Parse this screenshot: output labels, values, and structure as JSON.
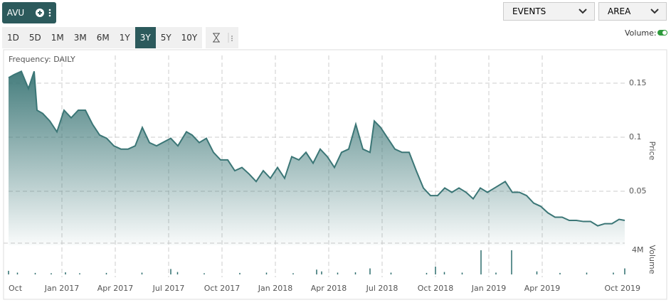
{
  "toolbar": {
    "symbol": "AVU",
    "ranges": [
      "1D",
      "5D",
      "1M",
      "3M",
      "6M",
      "1Y",
      "3Y",
      "5Y",
      "10Y"
    ],
    "selected_range_index": 6,
    "events": "EVENTS",
    "chart_style": "AREA",
    "volume_toggle": "Volume:"
  },
  "chart_data": {
    "type": "area",
    "frequency_label": "Frequency: DAILY",
    "y_label": "Price",
    "y2_label": "Volume",
    "xlim": [
      0,
      34.64
    ],
    "xticks": [
      {
        "value": 0,
        "label": "Oct"
      },
      {
        "value": 3,
        "label": "Jan 2017"
      },
      {
        "value": 6,
        "label": "Apr 2017"
      },
      {
        "value": 9,
        "label": "Jul 2017"
      },
      {
        "value": 12,
        "label": "Oct 2017"
      },
      {
        "value": 15,
        "label": "Jan 2018"
      },
      {
        "value": 18,
        "label": "Apr 2018"
      },
      {
        "value": 21,
        "label": "Jul 2018"
      },
      {
        "value": 24,
        "label": "Oct 2018"
      },
      {
        "value": 27,
        "label": "Jan 2019"
      },
      {
        "value": 30,
        "label": "Apr 2019"
      },
      {
        "value": 34.64,
        "label": "Oct 2019"
      }
    ],
    "ylim": [
      0,
      0.175
    ],
    "yticks": [
      0.05,
      0.1,
      0.15
    ],
    "y2lim": [
      0,
      5000000
    ],
    "y2ticks": [
      {
        "value": 4000000,
        "label": "4M"
      }
    ],
    "grid": true,
    "series": [
      {
        "color": "#3b7676",
        "x": [
          0,
          0.32,
          0.72,
          1.12,
          1.44,
          1.6,
          1.92,
          2.32,
          2.72,
          3.12,
          3.52,
          3.92,
          4.32,
          4.72,
          5.12,
          5.52,
          5.92,
          6.32,
          6.72,
          7.12,
          7.52,
          7.92,
          8.32,
          9.12,
          9.52,
          10,
          10.32,
          10.72,
          11.12,
          11.52,
          11.92,
          12.32,
          12.72,
          13.12,
          13.52,
          13.92,
          14.32,
          14.72,
          15.12,
          15.52,
          15.92,
          16.32,
          16.72,
          17.12,
          17.52,
          17.92,
          18.32,
          18.72,
          19.12,
          19.52,
          19.92,
          20.32,
          20.56,
          20.92,
          21.32,
          21.72,
          22.12,
          22.52,
          22.92,
          23.32,
          23.72,
          24.12,
          24.52,
          24.92,
          25.32,
          25.72,
          26.12,
          26.52,
          26.92,
          27.32,
          27.92,
          28.32,
          28.72,
          29.12,
          29.52,
          29.92,
          30.32,
          30.72,
          31.12,
          31.52,
          31.92,
          32.32,
          32.72,
          33.12,
          33.52,
          33.92,
          34.32,
          34.64
        ],
        "values": [
          0.155,
          0.158,
          0.161,
          0.145,
          0.161,
          0.125,
          0.122,
          0.115,
          0.105,
          0.125,
          0.118,
          0.125,
          0.125,
          0.112,
          0.102,
          0.099,
          0.092,
          0.089,
          0.089,
          0.092,
          0.109,
          0.095,
          0.092,
          0.099,
          0.092,
          0.105,
          0.102,
          0.095,
          0.099,
          0.086,
          0.079,
          0.079,
          0.069,
          0.072,
          0.066,
          0.059,
          0.069,
          0.062,
          0.072,
          0.062,
          0.082,
          0.079,
          0.086,
          0.076,
          0.089,
          0.082,
          0.072,
          0.086,
          0.089,
          0.112,
          0.089,
          0.086,
          0.115,
          0.109,
          0.099,
          0.089,
          0.086,
          0.086,
          0.069,
          0.053,
          0.046,
          0.046,
          0.053,
          0.049,
          0.053,
          0.049,
          0.043,
          0.053,
          0.049,
          0.053,
          0.059,
          0.049,
          0.049,
          0.046,
          0.039,
          0.036,
          0.03,
          0.026,
          0.026,
          0.023,
          0.023,
          0.022,
          0.022,
          0.018,
          0.02,
          0.02,
          0.024,
          0.023
        ]
      },
      {
        "axis": "y2",
        "type": "bar",
        "color": "#2f6f6f",
        "x": [
          0,
          0.5,
          1.5,
          2.4,
          3.2,
          4,
          5.5,
          7.5,
          9.12,
          9.5,
          11,
          13,
          14.5,
          16,
          17.32,
          17.6,
          18.5,
          19.5,
          20.32,
          21.5,
          23.5,
          24,
          24.5,
          25.5,
          26.56,
          27.4,
          28.28,
          29.7,
          31,
          32.5,
          34,
          34.64
        ],
        "values": [
          600000,
          300000,
          250000,
          200000,
          350000,
          200000,
          250000,
          300000,
          900000,
          400000,
          200000,
          250000,
          300000,
          200000,
          800000,
          500000,
          300000,
          350000,
          1000000,
          300000,
          250000,
          1300000,
          400000,
          300000,
          4000000,
          300000,
          4000000,
          500000,
          250000,
          300000,
          300000,
          1000000
        ]
      }
    ]
  }
}
